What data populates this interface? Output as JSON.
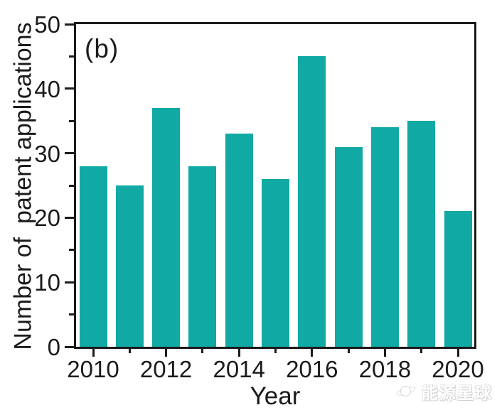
{
  "figure": {
    "panel_label": "(b)",
    "watermark": {
      "text": "能源星球",
      "icon": "planet-icon"
    }
  },
  "chart_data": {
    "type": "bar",
    "title": "",
    "xlabel": "Year",
    "ylabel": "Number of  patent applications",
    "categories": [
      2010,
      2011,
      2012,
      2013,
      2014,
      2015,
      2016,
      2017,
      2018,
      2019,
      2020
    ],
    "values": [
      28,
      25,
      37,
      28,
      33,
      26,
      45,
      31,
      34,
      35,
      21
    ],
    "ylim": [
      0,
      50
    ],
    "yticks_major": [
      0,
      10,
      20,
      30,
      40,
      50
    ],
    "yticks_minor": [
      5,
      15,
      25,
      35,
      45
    ],
    "xticks_labeled": [
      2010,
      2012,
      2014,
      2016,
      2018,
      2020
    ],
    "xticks_minor": [
      2011,
      2013,
      2015,
      2017,
      2019
    ],
    "bar_color": "#10a9a4",
    "axis_color": "#1b1b1b",
    "background": "#ffffff",
    "grid": false,
    "legend": null
  }
}
